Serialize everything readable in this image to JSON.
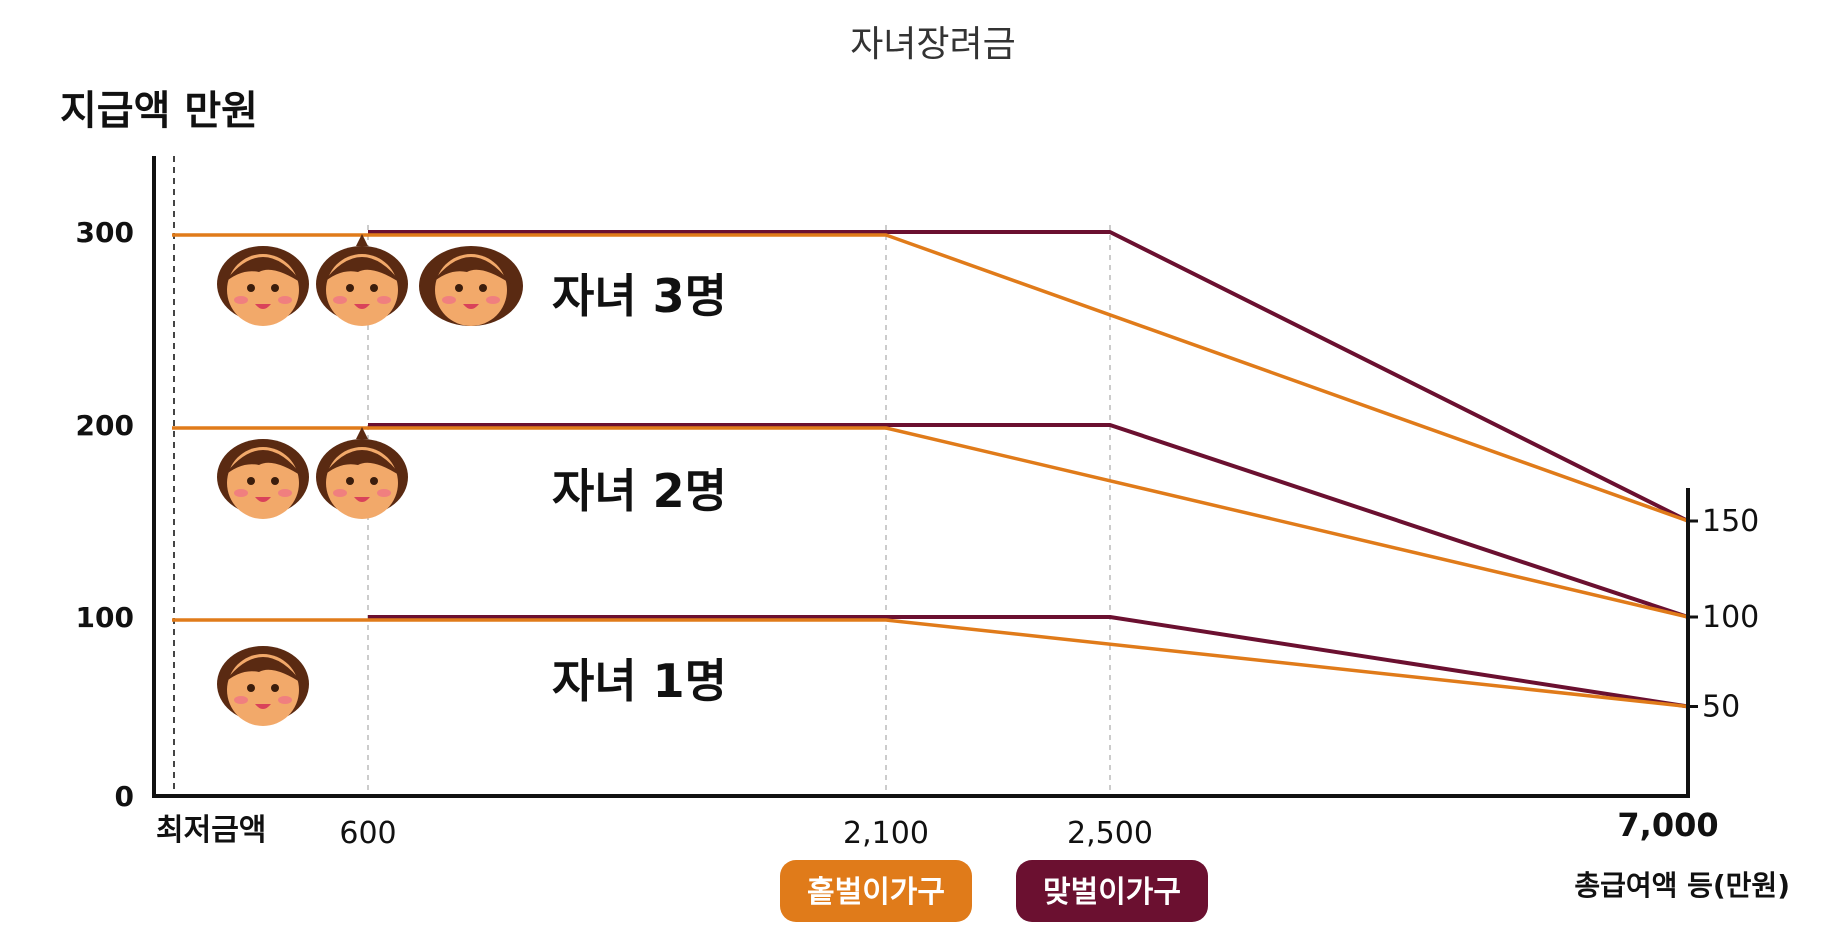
{
  "chart_data": {
    "type": "line",
    "title": "자녀장려금",
    "ylabel": "지급액 만원",
    "xlabel": "총급여액 등(만원)",
    "x_min_label": "최저금액",
    "x_ticks": [
      {
        "value": 600,
        "label": "600",
        "bold": false
      },
      {
        "value": 2100,
        "label": "2,100",
        "bold": false
      },
      {
        "value": 2500,
        "label": "2,500",
        "bold": false
      },
      {
        "value": 7000,
        "label": "7,000",
        "bold": true
      }
    ],
    "y_ticks": [
      "0",
      "100",
      "200",
      "300"
    ],
    "right_ticks": [
      "150",
      "100",
      "50"
    ],
    "ylim": [
      0,
      300
    ],
    "xlim": [
      0,
      7000
    ],
    "grid": "vertical dashed at 600, 2100, 2500",
    "legend": [
      "홑벌이가구",
      "맞벌이가구"
    ],
    "colors": {
      "single": "#e07b1a",
      "dual": "#6b1030"
    },
    "groups": [
      {
        "label": "자녀 3명",
        "children": 3,
        "single": {
          "x": [
            0,
            2100,
            7000
          ],
          "y": [
            300,
            300,
            150
          ]
        },
        "dual": {
          "x": [
            600,
            2500,
            7000
          ],
          "y": [
            300,
            300,
            150
          ]
        }
      },
      {
        "label": "자녀 2명",
        "children": 2,
        "single": {
          "x": [
            0,
            2100,
            7000
          ],
          "y": [
            200,
            200,
            100
          ]
        },
        "dual": {
          "x": [
            600,
            2500,
            7000
          ],
          "y": [
            200,
            200,
            100
          ]
        }
      },
      {
        "label": "자녀 1명",
        "children": 1,
        "single": {
          "x": [
            0,
            2100,
            7000
          ],
          "y": [
            100,
            100,
            50
          ]
        },
        "dual": {
          "x": [
            600,
            2500,
            7000
          ],
          "y": [
            100,
            100,
            50
          ]
        }
      }
    ]
  }
}
